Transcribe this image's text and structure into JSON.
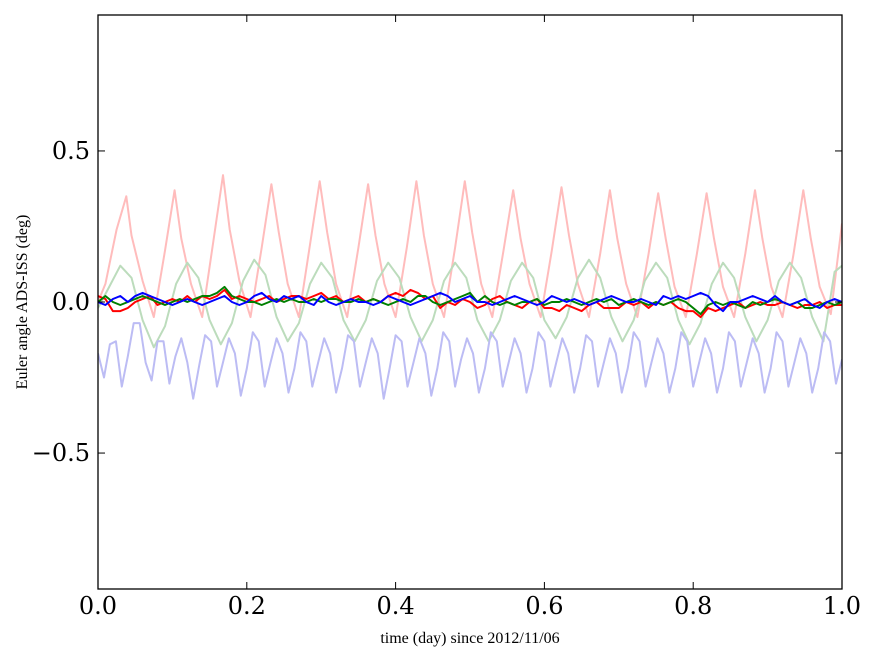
{
  "chart_data": {
    "type": "line",
    "xlabel": "time (day) since 2012/11/06",
    "ylabel": "Euler angle ADS-ISS (deg)",
    "xlim": [
      0.0,
      1.0
    ],
    "ylim": [
      -0.95,
      0.95
    ],
    "grid": false,
    "x_ticks": [
      0.0,
      0.2,
      0.4,
      0.6,
      0.8,
      1.0
    ],
    "x_tick_labels": [
      "0.0",
      "0.2",
      "0.4",
      "0.6",
      "0.8",
      "1.0"
    ],
    "y_ticks": [
      0.5,
      0.0,
      -0.5
    ],
    "y_tick_labels": [
      "0.5",
      "0.0",
      "−0.5"
    ],
    "series": [
      {
        "color": "#ffbcbc",
        "x": [
          0.0,
          0.01,
          0.025,
          0.038,
          0.045,
          0.06,
          0.075,
          0.09,
          0.103,
          0.112,
          0.125,
          0.14,
          0.155,
          0.168,
          0.177,
          0.19,
          0.205,
          0.22,
          0.233,
          0.243,
          0.255,
          0.27,
          0.285,
          0.298,
          0.308,
          0.32,
          0.335,
          0.35,
          0.363,
          0.373,
          0.385,
          0.4,
          0.415,
          0.428,
          0.438,
          0.45,
          0.465,
          0.48,
          0.493,
          0.503,
          0.515,
          0.53,
          0.545,
          0.558,
          0.568,
          0.58,
          0.595,
          0.61,
          0.623,
          0.633,
          0.645,
          0.66,
          0.675,
          0.688,
          0.698,
          0.71,
          0.725,
          0.74,
          0.753,
          0.763,
          0.775,
          0.79,
          0.805,
          0.818,
          0.828,
          0.84,
          0.855,
          0.87,
          0.883,
          0.893,
          0.905,
          0.92,
          0.935,
          0.948,
          0.958,
          0.97,
          0.985,
          1.0
        ],
        "y": [
          0.0,
          0.06,
          0.24,
          0.35,
          0.22,
          0.07,
          -0.05,
          0.17,
          0.37,
          0.21,
          0.06,
          -0.05,
          0.2,
          0.42,
          0.24,
          0.07,
          -0.05,
          0.18,
          0.39,
          0.23,
          0.06,
          -0.05,
          0.19,
          0.4,
          0.23,
          0.06,
          -0.05,
          0.18,
          0.39,
          0.22,
          0.06,
          -0.05,
          0.18,
          0.4,
          0.22,
          0.06,
          -0.05,
          0.18,
          0.4,
          0.23,
          0.06,
          -0.05,
          0.17,
          0.37,
          0.21,
          0.06,
          -0.05,
          0.17,
          0.38,
          0.22,
          0.06,
          -0.05,
          0.16,
          0.37,
          0.21,
          0.06,
          -0.05,
          0.16,
          0.36,
          0.21,
          0.05,
          -0.05,
          0.16,
          0.36,
          0.21,
          0.05,
          -0.05,
          0.16,
          0.37,
          0.21,
          0.05,
          -0.05,
          0.16,
          0.37,
          0.21,
          0.05,
          -0.04,
          0.26
        ]
      },
      {
        "color": "#bcdcbc",
        "x": [
          0.0,
          0.015,
          0.03,
          0.045,
          0.06,
          0.075,
          0.09,
          0.105,
          0.12,
          0.135,
          0.15,
          0.165,
          0.18,
          0.195,
          0.21,
          0.225,
          0.24,
          0.255,
          0.27,
          0.285,
          0.3,
          0.315,
          0.33,
          0.345,
          0.36,
          0.375,
          0.39,
          0.405,
          0.42,
          0.435,
          0.45,
          0.465,
          0.48,
          0.495,
          0.51,
          0.525,
          0.54,
          0.555,
          0.57,
          0.585,
          0.6,
          0.615,
          0.63,
          0.645,
          0.66,
          0.675,
          0.69,
          0.705,
          0.72,
          0.735,
          0.75,
          0.765,
          0.78,
          0.795,
          0.81,
          0.825,
          0.84,
          0.855,
          0.87,
          0.885,
          0.9,
          0.915,
          0.93,
          0.945,
          0.96,
          0.975,
          0.99,
          1.0
        ],
        "y": [
          -0.02,
          0.05,
          0.12,
          0.08,
          -0.06,
          -0.15,
          -0.08,
          0.06,
          0.13,
          0.08,
          -0.06,
          -0.14,
          -0.07,
          0.07,
          0.14,
          0.09,
          -0.05,
          -0.13,
          -0.07,
          0.06,
          0.13,
          0.08,
          -0.06,
          -0.13,
          -0.06,
          0.07,
          0.13,
          0.08,
          -0.05,
          -0.13,
          -0.06,
          0.07,
          0.13,
          0.08,
          -0.06,
          -0.13,
          -0.06,
          0.07,
          0.13,
          0.08,
          -0.06,
          -0.12,
          -0.05,
          0.08,
          0.14,
          0.08,
          -0.05,
          -0.13,
          -0.06,
          0.07,
          0.13,
          0.08,
          -0.06,
          -0.14,
          -0.07,
          0.06,
          0.13,
          0.08,
          -0.05,
          -0.13,
          -0.06,
          0.07,
          0.13,
          0.08,
          -0.05,
          -0.13,
          0.1,
          0.12
        ]
      },
      {
        "color": "#bcbcf4",
        "x": [
          0.0,
          0.008,
          0.016,
          0.024,
          0.032,
          0.04,
          0.048,
          0.056,
          0.064,
          0.072,
          0.08,
          0.088,
          0.096,
          0.104,
          0.112,
          0.12,
          0.128,
          0.136,
          0.144,
          0.152,
          0.16,
          0.168,
          0.176,
          0.184,
          0.192,
          0.2,
          0.208,
          0.216,
          0.224,
          0.232,
          0.24,
          0.248,
          0.256,
          0.264,
          0.272,
          0.28,
          0.288,
          0.296,
          0.304,
          0.312,
          0.32,
          0.328,
          0.336,
          0.344,
          0.352,
          0.36,
          0.368,
          0.376,
          0.384,
          0.392,
          0.4,
          0.408,
          0.416,
          0.424,
          0.432,
          0.44,
          0.448,
          0.456,
          0.464,
          0.472,
          0.48,
          0.488,
          0.496,
          0.504,
          0.512,
          0.52,
          0.528,
          0.536,
          0.544,
          0.552,
          0.56,
          0.568,
          0.576,
          0.584,
          0.592,
          0.6,
          0.608,
          0.616,
          0.624,
          0.632,
          0.64,
          0.648,
          0.656,
          0.664,
          0.672,
          0.68,
          0.688,
          0.696,
          0.704,
          0.712,
          0.72,
          0.728,
          0.736,
          0.744,
          0.752,
          0.76,
          0.768,
          0.776,
          0.784,
          0.792,
          0.8,
          0.808,
          0.816,
          0.824,
          0.832,
          0.84,
          0.848,
          0.856,
          0.864,
          0.872,
          0.88,
          0.888,
          0.896,
          0.904,
          0.912,
          0.92,
          0.928,
          0.936,
          0.944,
          0.952,
          0.96,
          0.968,
          0.976,
          0.984,
          0.992,
          1.0
        ],
        "y": [
          -0.17,
          -0.25,
          -0.14,
          -0.13,
          -0.28,
          -0.18,
          -0.07,
          -0.07,
          -0.2,
          -0.26,
          -0.13,
          -0.13,
          -0.27,
          -0.18,
          -0.12,
          -0.2,
          -0.32,
          -0.21,
          -0.11,
          -0.13,
          -0.28,
          -0.2,
          -0.12,
          -0.17,
          -0.31,
          -0.22,
          -0.1,
          -0.13,
          -0.28,
          -0.2,
          -0.12,
          -0.17,
          -0.3,
          -0.22,
          -0.1,
          -0.13,
          -0.28,
          -0.2,
          -0.12,
          -0.17,
          -0.3,
          -0.22,
          -0.11,
          -0.13,
          -0.28,
          -0.2,
          -0.12,
          -0.17,
          -0.32,
          -0.22,
          -0.11,
          -0.13,
          -0.28,
          -0.2,
          -0.12,
          -0.17,
          -0.31,
          -0.22,
          -0.1,
          -0.13,
          -0.28,
          -0.19,
          -0.12,
          -0.17,
          -0.3,
          -0.22,
          -0.1,
          -0.13,
          -0.28,
          -0.2,
          -0.12,
          -0.17,
          -0.3,
          -0.22,
          -0.1,
          -0.13,
          -0.28,
          -0.2,
          -0.12,
          -0.17,
          -0.3,
          -0.22,
          -0.11,
          -0.13,
          -0.28,
          -0.2,
          -0.12,
          -0.17,
          -0.3,
          -0.22,
          -0.1,
          -0.13,
          -0.28,
          -0.2,
          -0.12,
          -0.17,
          -0.3,
          -0.22,
          -0.1,
          -0.13,
          -0.28,
          -0.2,
          -0.12,
          -0.17,
          -0.3,
          -0.22,
          -0.1,
          -0.13,
          -0.28,
          -0.2,
          -0.12,
          -0.17,
          -0.3,
          -0.22,
          -0.1,
          -0.13,
          -0.28,
          -0.2,
          -0.12,
          -0.17,
          -0.3,
          -0.22,
          -0.1,
          -0.13,
          -0.27,
          -0.19
        ]
      },
      {
        "color": "#ff0000",
        "x": [
          0.0,
          0.01,
          0.02,
          0.03,
          0.04,
          0.05,
          0.06,
          0.07,
          0.08,
          0.09,
          0.1,
          0.11,
          0.12,
          0.13,
          0.14,
          0.15,
          0.16,
          0.17,
          0.18,
          0.19,
          0.2,
          0.21,
          0.22,
          0.23,
          0.24,
          0.25,
          0.26,
          0.27,
          0.28,
          0.29,
          0.3,
          0.31,
          0.32,
          0.33,
          0.34,
          0.35,
          0.36,
          0.37,
          0.38,
          0.39,
          0.4,
          0.41,
          0.42,
          0.43,
          0.44,
          0.45,
          0.46,
          0.47,
          0.48,
          0.49,
          0.5,
          0.51,
          0.52,
          0.53,
          0.54,
          0.55,
          0.56,
          0.57,
          0.58,
          0.59,
          0.6,
          0.61,
          0.62,
          0.63,
          0.64,
          0.65,
          0.66,
          0.67,
          0.68,
          0.69,
          0.7,
          0.71,
          0.72,
          0.73,
          0.74,
          0.75,
          0.76,
          0.77,
          0.78,
          0.79,
          0.8,
          0.81,
          0.82,
          0.83,
          0.84,
          0.85,
          0.86,
          0.87,
          0.88,
          0.89,
          0.9,
          0.91,
          0.92,
          0.93,
          0.94,
          0.95,
          0.96,
          0.97,
          0.98,
          0.99,
          1.0
        ],
        "y": [
          0.02,
          0.01,
          -0.03,
          -0.03,
          -0.02,
          0.0,
          0.01,
          0.02,
          -0.01,
          0.0,
          0.01,
          0.0,
          0.02,
          0.0,
          0.02,
          0.01,
          0.02,
          0.04,
          0.01,
          0.02,
          0.01,
          0.0,
          0.01,
          0.02,
          0.0,
          0.01,
          0.02,
          0.02,
          0.01,
          0.02,
          0.03,
          0.01,
          0.02,
          0.0,
          0.01,
          0.02,
          0.0,
          0.01,
          0.0,
          0.02,
          0.03,
          0.02,
          0.04,
          0.03,
          0.01,
          0.02,
          -0.02,
          0.0,
          -0.01,
          0.01,
          0.0,
          -0.02,
          -0.01,
          0.01,
          0.02,
          0.0,
          -0.01,
          -0.02,
          0.0,
          0.01,
          -0.02,
          -0.02,
          -0.03,
          -0.01,
          -0.02,
          -0.03,
          -0.01,
          0.0,
          -0.02,
          -0.02,
          -0.02,
          0.0,
          -0.01,
          0.0,
          -0.02,
          0.0,
          -0.01,
          0.0,
          -0.02,
          -0.03,
          -0.03,
          -0.05,
          -0.02,
          -0.03,
          -0.02,
          -0.01,
          0.0,
          -0.02,
          -0.01,
          0.0,
          -0.01,
          -0.01,
          0.0,
          -0.01,
          -0.02,
          -0.01,
          -0.01,
          0.0,
          -0.02,
          -0.01,
          -0.01
        ]
      },
      {
        "color": "#008000",
        "x": [
          0.0,
          0.01,
          0.02,
          0.03,
          0.04,
          0.05,
          0.06,
          0.07,
          0.08,
          0.09,
          0.1,
          0.11,
          0.12,
          0.13,
          0.14,
          0.15,
          0.16,
          0.17,
          0.18,
          0.19,
          0.2,
          0.21,
          0.22,
          0.23,
          0.24,
          0.25,
          0.26,
          0.27,
          0.28,
          0.29,
          0.3,
          0.31,
          0.32,
          0.33,
          0.34,
          0.35,
          0.36,
          0.37,
          0.38,
          0.39,
          0.4,
          0.41,
          0.42,
          0.43,
          0.44,
          0.45,
          0.46,
          0.47,
          0.48,
          0.49,
          0.5,
          0.51,
          0.52,
          0.53,
          0.54,
          0.55,
          0.56,
          0.57,
          0.58,
          0.59,
          0.6,
          0.61,
          0.62,
          0.63,
          0.64,
          0.65,
          0.66,
          0.67,
          0.68,
          0.69,
          0.7,
          0.71,
          0.72,
          0.73,
          0.74,
          0.75,
          0.76,
          0.77,
          0.78,
          0.79,
          0.8,
          0.81,
          0.82,
          0.83,
          0.84,
          0.85,
          0.86,
          0.87,
          0.88,
          0.89,
          0.9,
          0.91,
          0.92,
          0.93,
          0.94,
          0.95,
          0.96,
          0.97,
          0.98,
          0.99,
          1.0
        ],
        "y": [
          0.0,
          0.02,
          0.0,
          -0.01,
          0.0,
          0.01,
          0.02,
          0.01,
          0.0,
          -0.01,
          0.0,
          0.01,
          0.0,
          0.01,
          0.02,
          0.02,
          0.03,
          0.05,
          0.02,
          0.01,
          0.0,
          0.0,
          -0.01,
          0.0,
          0.01,
          0.0,
          0.01,
          0.0,
          0.0,
          0.01,
          0.0,
          0.01,
          0.01,
          0.0,
          0.0,
          0.01,
          0.0,
          0.01,
          0.0,
          -0.01,
          0.0,
          0.01,
          0.0,
          0.02,
          0.02,
          0.0,
          -0.01,
          0.0,
          0.01,
          0.02,
          0.03,
          0.0,
          0.02,
          0.0,
          -0.01,
          0.0,
          -0.01,
          0.0,
          0.0,
          0.01,
          -0.01,
          0.0,
          0.0,
          0.01,
          0.0,
          -0.01,
          0.0,
          0.01,
          0.0,
          0.01,
          -0.01,
          0.0,
          0.01,
          0.0,
          -0.01,
          0.0,
          -0.01,
          0.0,
          0.01,
          0.0,
          -0.02,
          -0.04,
          -0.01,
          0.0,
          -0.01,
          0.0,
          -0.01,
          -0.02,
          0.0,
          -0.01,
          0.0,
          0.01,
          0.0,
          -0.01,
          0.0,
          -0.02,
          -0.02,
          -0.01,
          0.0,
          -0.01,
          0.0
        ]
      },
      {
        "color": "#0000ff",
        "x": [
          0.0,
          0.01,
          0.02,
          0.03,
          0.04,
          0.05,
          0.06,
          0.07,
          0.08,
          0.09,
          0.1,
          0.11,
          0.12,
          0.13,
          0.14,
          0.15,
          0.16,
          0.17,
          0.18,
          0.19,
          0.2,
          0.21,
          0.22,
          0.23,
          0.24,
          0.25,
          0.26,
          0.27,
          0.28,
          0.29,
          0.3,
          0.31,
          0.32,
          0.33,
          0.34,
          0.35,
          0.36,
          0.37,
          0.38,
          0.39,
          0.4,
          0.41,
          0.42,
          0.43,
          0.44,
          0.45,
          0.46,
          0.47,
          0.48,
          0.49,
          0.5,
          0.51,
          0.52,
          0.53,
          0.54,
          0.55,
          0.56,
          0.57,
          0.58,
          0.59,
          0.6,
          0.61,
          0.62,
          0.63,
          0.64,
          0.65,
          0.66,
          0.67,
          0.68,
          0.69,
          0.7,
          0.71,
          0.72,
          0.73,
          0.74,
          0.75,
          0.76,
          0.77,
          0.78,
          0.79,
          0.8,
          0.81,
          0.82,
          0.83,
          0.84,
          0.85,
          0.86,
          0.87,
          0.88,
          0.89,
          0.9,
          0.91,
          0.92,
          0.93,
          0.94,
          0.95,
          0.96,
          0.97,
          0.98,
          0.99,
          1.0
        ],
        "y": [
          0.0,
          -0.01,
          0.01,
          0.02,
          0.0,
          0.02,
          0.03,
          0.02,
          0.01,
          0.0,
          -0.01,
          0.0,
          0.01,
          0.0,
          -0.01,
          0.0,
          0.01,
          0.02,
          0.0,
          -0.01,
          0.0,
          0.02,
          0.03,
          0.01,
          0.0,
          0.02,
          0.01,
          0.02,
          0.0,
          -0.01,
          0.02,
          0.0,
          -0.01,
          0.0,
          0.01,
          0.0,
          0.0,
          -0.01,
          0.0,
          0.02,
          0.01,
          0.0,
          -0.01,
          0.0,
          0.01,
          0.02,
          0.03,
          0.02,
          0.0,
          0.01,
          0.02,
          0.0,
          0.0,
          -0.01,
          0.0,
          0.01,
          0.02,
          0.01,
          0.0,
          -0.01,
          0.0,
          0.02,
          0.01,
          0.0,
          0.01,
          0.0,
          -0.01,
          0.0,
          0.01,
          0.02,
          0.01,
          0.0,
          0.0,
          0.01,
          0.0,
          -0.01,
          0.02,
          0.01,
          0.02,
          0.01,
          0.02,
          0.03,
          0.02,
          -0.01,
          -0.03,
          0.0,
          0.0,
          0.01,
          0.02,
          0.01,
          0.0,
          0.02,
          0.0,
          -0.01,
          0.0,
          0.01,
          -0.01,
          -0.02,
          0.0,
          0.01,
          0.0
        ]
      }
    ]
  }
}
